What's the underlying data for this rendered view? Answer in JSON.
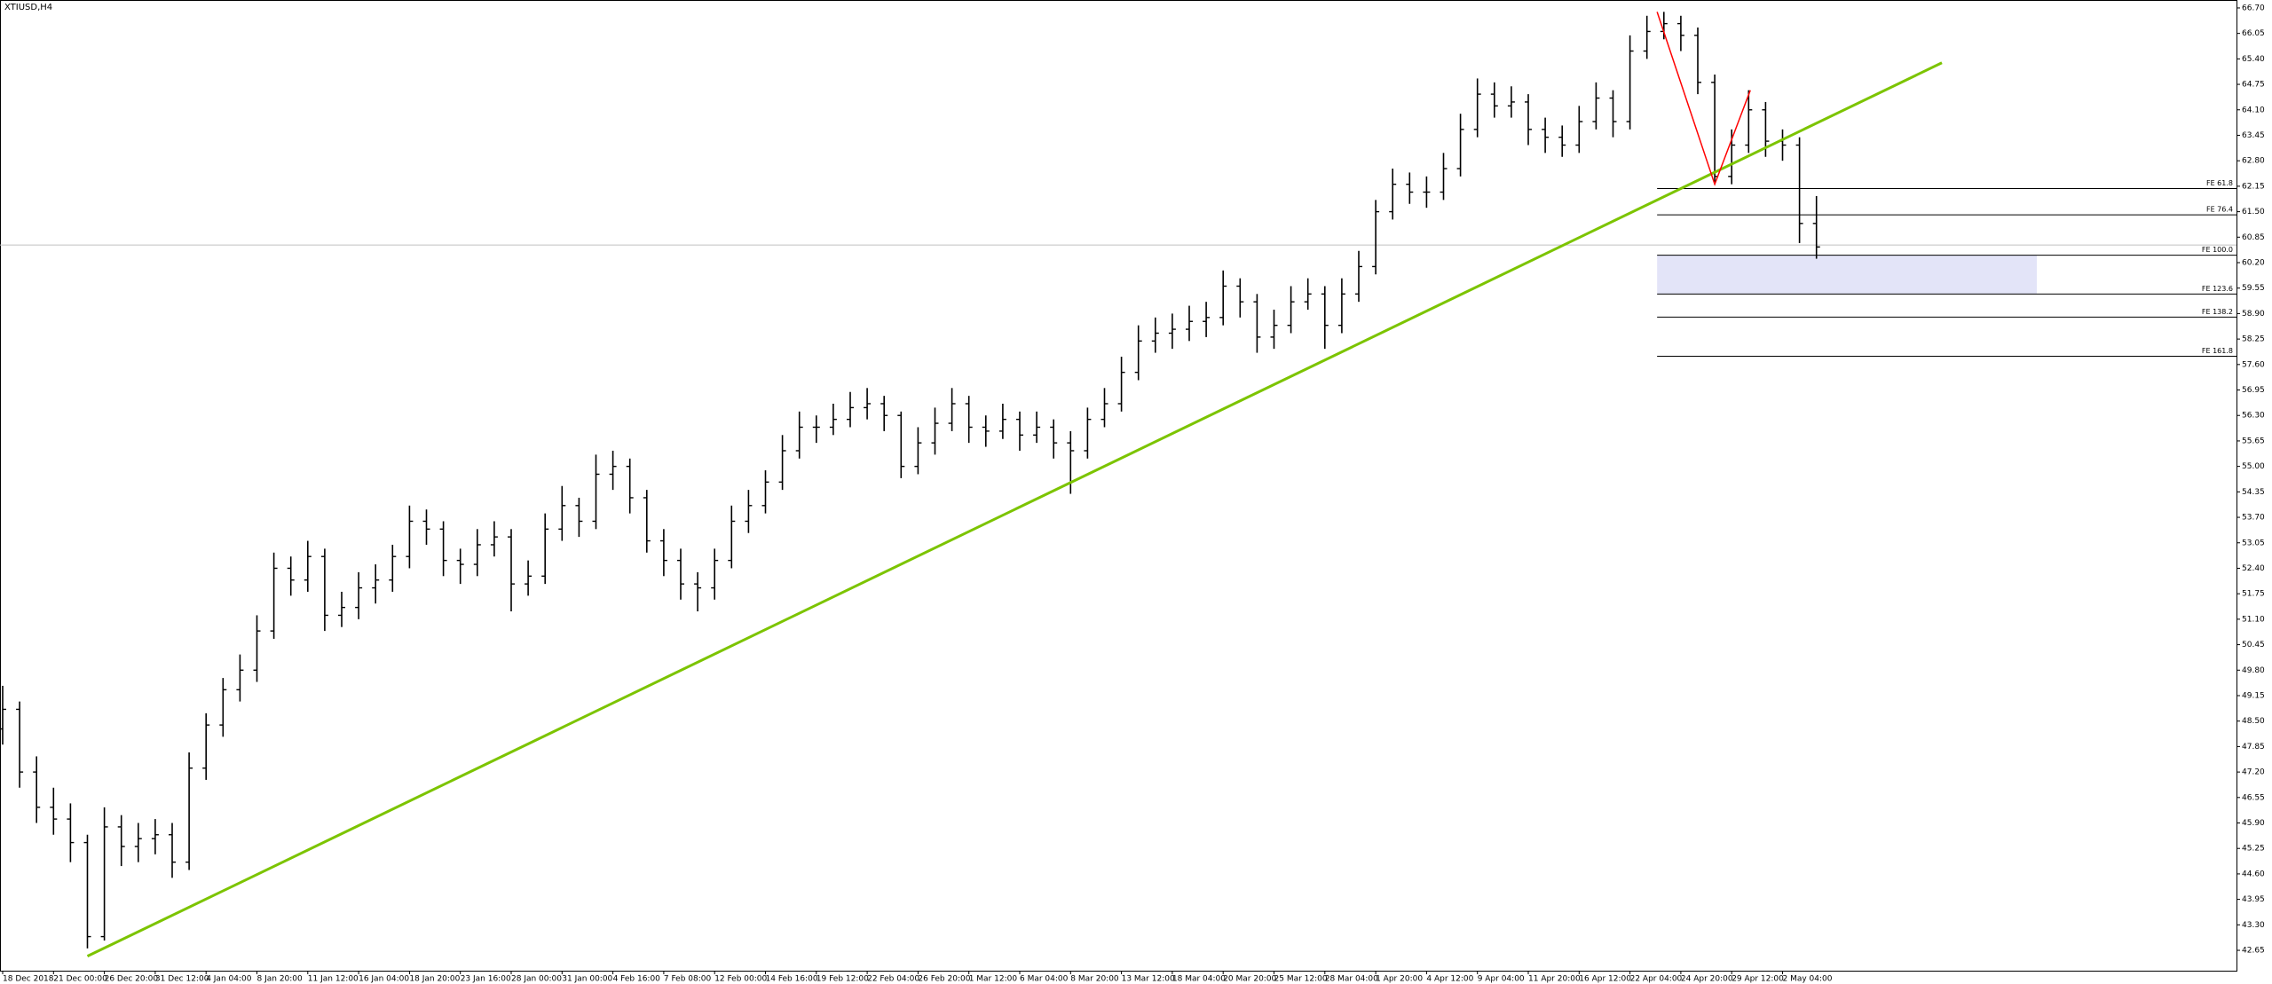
{
  "chart_data": {
    "type": "ohlc",
    "title": "XTIUSD,H4",
    "color": "#000000",
    "categories": [
      "18 Dec 2018",
      null,
      null,
      "21 Dec 00:00",
      null,
      null,
      "26 Dec 20:00",
      null,
      null,
      "31 Dec 12:00",
      null,
      null,
      "4 Jan 04:00",
      null,
      null,
      "8 Jan 20:00",
      null,
      null,
      "11 Jan 12:00",
      null,
      null,
      "16 Jan 04:00",
      null,
      null,
      "18 Jan 20:00",
      null,
      null,
      "23 Jan 16:00",
      null,
      null,
      "28 Jan 00:00",
      null,
      null,
      "31 Jan 00:00",
      null,
      null,
      "4 Feb 16:00",
      null,
      null,
      "7 Feb 08:00",
      null,
      null,
      "12 Feb 00:00",
      null,
      null,
      "14 Feb 16:00",
      null,
      null,
      "19 Feb 12:00",
      null,
      null,
      "22 Feb 04:00",
      null,
      null,
      "26 Feb 20:00",
      null,
      null,
      "1 Mar 12:00",
      null,
      null,
      "6 Mar 04:00",
      null,
      null,
      "8 Mar 20:00",
      null,
      null,
      "13 Mar 12:00",
      null,
      null,
      "18 Mar 04:00",
      null,
      null,
      "20 Mar 20:00",
      null,
      null,
      "25 Mar 12:00",
      null,
      null,
      "28 Mar 04:00",
      null,
      null,
      "1 Apr 20:00",
      null,
      null,
      "4 Apr 12:00",
      null,
      null,
      "9 Apr 04:00",
      null,
      null,
      "11 Apr 20:00",
      null,
      null,
      "16 Apr 12:00",
      null,
      null,
      "22 Apr 04:00",
      null,
      null,
      "24 Apr 20:00",
      null,
      null,
      "29 Apr 12:00",
      null,
      null,
      "2 May 04:00",
      null,
      null
    ],
    "open": [
      48.3,
      48.8,
      47.2,
      46.3,
      46.0,
      45.4,
      43.0,
      45.8,
      45.3,
      45.5,
      45.6,
      44.9,
      47.3,
      48.4,
      49.3,
      49.8,
      50.8,
      52.4,
      52.1,
      52.7,
      51.2,
      51.4,
      51.9,
      52.1,
      52.7,
      53.6,
      53.4,
      52.6,
      52.5,
      53.0,
      53.2,
      52.0,
      52.2,
      53.4,
      54.0,
      53.6,
      54.8,
      55.0,
      54.2,
      53.1,
      52.6,
      52.0,
      51.9,
      52.6,
      53.6,
      54.0,
      54.6,
      55.4,
      56.0,
      56.0,
      56.2,
      56.5,
      56.6,
      56.3,
      55.0,
      55.6,
      56.1,
      56.6,
      56.0,
      55.9,
      56.2,
      55.8,
      56.0,
      55.6,
      55.4,
      56.2,
      56.6,
      57.4,
      58.2,
      58.4,
      58.5,
      58.7,
      58.8,
      59.6,
      59.2,
      58.3,
      58.6,
      59.2,
      59.4,
      58.6,
      59.4,
      60.1,
      61.5,
      62.2,
      62.0,
      62.0,
      62.6,
      63.6,
      64.5,
      64.2,
      64.3,
      63.6,
      63.4,
      63.2,
      63.8,
      64.4,
      63.8,
      65.6,
      66.1,
      66.3,
      66.0,
      64.8,
      62.4,
      63.2,
      64.1,
      63.3,
      63.2,
      61.2
    ],
    "high": [
      49.4,
      49.0,
      47.6,
      46.8,
      46.4,
      45.6,
      46.3,
      46.1,
      45.9,
      46.0,
      45.9,
      47.7,
      48.7,
      49.6,
      50.2,
      51.2,
      52.8,
      52.7,
      53.1,
      52.9,
      51.8,
      52.3,
      52.5,
      53.0,
      54.0,
      53.9,
      53.6,
      52.9,
      53.4,
      53.6,
      53.4,
      52.6,
      53.8,
      54.5,
      54.2,
      55.3,
      55.4,
      55.2,
      54.4,
      53.4,
      52.9,
      52.3,
      52.9,
      54.0,
      54.4,
      54.9,
      55.8,
      56.4,
      56.3,
      56.6,
      56.9,
      57.0,
      56.8,
      56.4,
      56.0,
      56.5,
      57.0,
      56.8,
      56.3,
      56.6,
      56.4,
      56.4,
      56.2,
      55.9,
      56.5,
      57.0,
      57.8,
      58.6,
      58.8,
      58.9,
      59.1,
      59.2,
      60.0,
      59.8,
      59.4,
      59.0,
      59.6,
      59.8,
      59.6,
      59.8,
      60.5,
      61.8,
      62.6,
      62.5,
      62.4,
      63.0,
      64.0,
      64.9,
      64.8,
      64.7,
      64.5,
      63.9,
      63.7,
      64.2,
      64.8,
      64.6,
      66.0,
      66.5,
      66.6,
      66.5,
      66.2,
      65.0,
      63.6,
      64.6,
      64.3,
      63.6,
      63.4,
      61.9
    ],
    "low": [
      47.9,
      46.8,
      45.9,
      45.6,
      44.9,
      42.7,
      42.9,
      44.8,
      44.9,
      45.1,
      44.5,
      44.7,
      47.0,
      48.1,
      49.0,
      49.5,
      50.6,
      51.7,
      51.8,
      50.8,
      50.9,
      51.1,
      51.5,
      51.8,
      52.4,
      53.0,
      52.2,
      52.0,
      52.2,
      52.7,
      51.3,
      51.7,
      52.0,
      53.1,
      53.2,
      53.4,
      54.4,
      53.8,
      52.8,
      52.2,
      51.6,
      51.3,
      51.6,
      52.4,
      53.3,
      53.8,
      54.4,
      55.2,
      55.6,
      55.8,
      56.0,
      56.2,
      55.9,
      54.7,
      54.8,
      55.3,
      55.9,
      55.6,
      55.5,
      55.7,
      55.4,
      55.6,
      55.2,
      54.3,
      55.2,
      56.0,
      56.4,
      57.2,
      57.9,
      58.0,
      58.2,
      58.3,
      58.6,
      58.8,
      57.9,
      58.0,
      58.4,
      59.0,
      58.0,
      58.4,
      59.2,
      59.9,
      61.3,
      61.7,
      61.6,
      61.8,
      62.4,
      63.4,
      63.9,
      63.9,
      63.2,
      63.0,
      62.9,
      63.0,
      63.6,
      63.4,
      63.6,
      65.4,
      65.9,
      65.6,
      64.5,
      62.2,
      62.2,
      63.0,
      62.9,
      62.8,
      60.7,
      60.3
    ],
    "close": [
      48.8,
      47.2,
      46.3,
      46.0,
      45.4,
      43.0,
      45.8,
      45.3,
      45.5,
      45.6,
      44.9,
      47.3,
      48.4,
      49.3,
      49.8,
      50.8,
      52.4,
      52.1,
      52.7,
      51.2,
      51.4,
      51.9,
      52.1,
      52.7,
      53.6,
      53.4,
      52.6,
      52.5,
      53.0,
      53.2,
      52.0,
      52.2,
      53.4,
      54.0,
      53.6,
      54.8,
      55.0,
      54.2,
      53.1,
      52.6,
      52.0,
      51.9,
      52.6,
      53.6,
      54.0,
      54.6,
      55.4,
      56.0,
      56.0,
      56.2,
      56.5,
      56.6,
      56.3,
      55.0,
      55.6,
      56.1,
      56.6,
      56.0,
      55.9,
      56.2,
      55.8,
      56.0,
      55.6,
      55.4,
      56.2,
      56.6,
      57.4,
      58.2,
      58.4,
      58.5,
      58.7,
      58.8,
      59.6,
      59.2,
      58.3,
      58.6,
      59.2,
      59.4,
      58.6,
      59.4,
      60.1,
      61.5,
      62.2,
      62.0,
      62.0,
      62.6,
      63.6,
      64.5,
      64.2,
      64.3,
      63.6,
      63.4,
      63.2,
      63.8,
      64.4,
      63.8,
      65.6,
      66.1,
      66.3,
      66.0,
      64.8,
      62.4,
      63.2,
      64.1,
      63.3,
      63.2,
      61.2,
      60.6
    ],
    "ylim": [
      42.13,
      66.88
    ],
    "yticks": [
      {
        "value": 66.7,
        "label": "66.70"
      },
      66.05,
      {
        "value": 65.4,
        "label": "65.40"
      },
      64.75,
      {
        "value": 64.1,
        "label": "64.10"
      },
      63.45,
      {
        "value": 62.8,
        "label": "62.80"
      },
      62.15,
      {
        "value": 61.5,
        "label": "61.50"
      },
      60.85,
      {
        "value": 60.2,
        "label": "60.20"
      },
      59.55,
      {
        "value": 58.9,
        "label": "58.90"
      },
      58.25,
      {
        "value": 57.6,
        "label": "57.60"
      },
      56.95,
      {
        "value": 56.3,
        "label": "56.30"
      },
      55.65,
      {
        "value": 55,
        "label": "55.00"
      },
      54.35,
      {
        "value": 53.7,
        "label": "53.70"
      },
      53.05,
      {
        "value": 52.4,
        "label": "52.40"
      },
      51.75,
      {
        "value": 51.1,
        "label": "51.10"
      },
      50.45,
      {
        "value": 49.8,
        "label": "49.80"
      },
      49.15,
      {
        "value": 48.5,
        "label": "48.50"
      },
      47.85,
      {
        "value": 47.2,
        "label": "47.20"
      },
      46.55,
      {
        "value": 45.9,
        "label": "45.90"
      },
      45.25,
      {
        "value": 44.6,
        "label": "44.60"
      },
      43.95,
      {
        "value": 43.3,
        "label": "43.30"
      },
      42.65
    ],
    "price_line": {
      "value": 60.65,
      "color": "#c0c0c0"
    },
    "trendline": {
      "color": "#7cc400",
      "x": [
        5.0,
        114.4
      ],
      "y": [
        42.5,
        65.3
      ]
    },
    "zigzag": {
      "color": "#ff0000",
      "x": [
        97.6,
        101.0,
        103.1
      ],
      "y": [
        66.6,
        62.2,
        64.6
      ]
    },
    "fibo": {
      "color": "#000000",
      "start": 97.6,
      "box_end": 120.0,
      "box_color": "#e3e4f8",
      "levels": [
        {
          "label": "FE 61.8",
          "value": 62.09
        },
        {
          "label": "FE 76.4",
          "value": 61.42
        },
        {
          "label": "FE 100.0",
          "value": 60.39
        },
        {
          "label": "FE 123.6",
          "value": 59.4
        },
        {
          "label": "FE 138.2",
          "value": 58.81
        },
        {
          "label": "FE 161.8",
          "value": 57.81
        }
      ]
    }
  }
}
